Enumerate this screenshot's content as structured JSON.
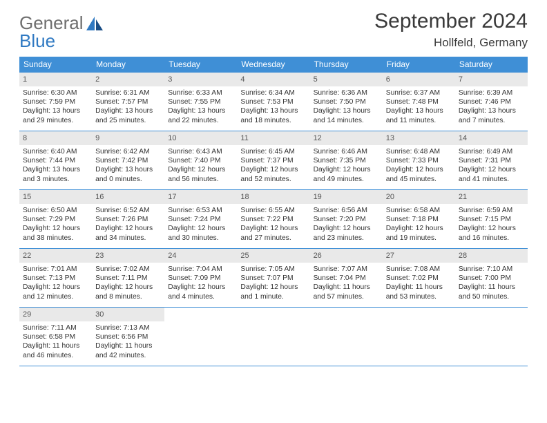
{
  "brand": {
    "word1": "General",
    "word2": "Blue"
  },
  "title": "September 2024",
  "location": "Hollfeld, Germany",
  "colors": {
    "header_bar": "#3f8fd6",
    "row_divider": "#3f8fd6",
    "daynum_bg": "#e9e9e9",
    "text": "#333333",
    "logo_gray": "#6e6e6e",
    "logo_blue": "#2f79c2"
  },
  "dow": [
    "Sunday",
    "Monday",
    "Tuesday",
    "Wednesday",
    "Thursday",
    "Friday",
    "Saturday"
  ],
  "days": [
    {
      "n": "1",
      "sr": "Sunrise: 6:30 AM",
      "ss": "Sunset: 7:59 PM",
      "dl": "Daylight: 13 hours and 29 minutes."
    },
    {
      "n": "2",
      "sr": "Sunrise: 6:31 AM",
      "ss": "Sunset: 7:57 PM",
      "dl": "Daylight: 13 hours and 25 minutes."
    },
    {
      "n": "3",
      "sr": "Sunrise: 6:33 AM",
      "ss": "Sunset: 7:55 PM",
      "dl": "Daylight: 13 hours and 22 minutes."
    },
    {
      "n": "4",
      "sr": "Sunrise: 6:34 AM",
      "ss": "Sunset: 7:53 PM",
      "dl": "Daylight: 13 hours and 18 minutes."
    },
    {
      "n": "5",
      "sr": "Sunrise: 6:36 AM",
      "ss": "Sunset: 7:50 PM",
      "dl": "Daylight: 13 hours and 14 minutes."
    },
    {
      "n": "6",
      "sr": "Sunrise: 6:37 AM",
      "ss": "Sunset: 7:48 PM",
      "dl": "Daylight: 13 hours and 11 minutes."
    },
    {
      "n": "7",
      "sr": "Sunrise: 6:39 AM",
      "ss": "Sunset: 7:46 PM",
      "dl": "Daylight: 13 hours and 7 minutes."
    },
    {
      "n": "8",
      "sr": "Sunrise: 6:40 AM",
      "ss": "Sunset: 7:44 PM",
      "dl": "Daylight: 13 hours and 3 minutes."
    },
    {
      "n": "9",
      "sr": "Sunrise: 6:42 AM",
      "ss": "Sunset: 7:42 PM",
      "dl": "Daylight: 13 hours and 0 minutes."
    },
    {
      "n": "10",
      "sr": "Sunrise: 6:43 AM",
      "ss": "Sunset: 7:40 PM",
      "dl": "Daylight: 12 hours and 56 minutes."
    },
    {
      "n": "11",
      "sr": "Sunrise: 6:45 AM",
      "ss": "Sunset: 7:37 PM",
      "dl": "Daylight: 12 hours and 52 minutes."
    },
    {
      "n": "12",
      "sr": "Sunrise: 6:46 AM",
      "ss": "Sunset: 7:35 PM",
      "dl": "Daylight: 12 hours and 49 minutes."
    },
    {
      "n": "13",
      "sr": "Sunrise: 6:48 AM",
      "ss": "Sunset: 7:33 PM",
      "dl": "Daylight: 12 hours and 45 minutes."
    },
    {
      "n": "14",
      "sr": "Sunrise: 6:49 AM",
      "ss": "Sunset: 7:31 PM",
      "dl": "Daylight: 12 hours and 41 minutes."
    },
    {
      "n": "15",
      "sr": "Sunrise: 6:50 AM",
      "ss": "Sunset: 7:29 PM",
      "dl": "Daylight: 12 hours and 38 minutes."
    },
    {
      "n": "16",
      "sr": "Sunrise: 6:52 AM",
      "ss": "Sunset: 7:26 PM",
      "dl": "Daylight: 12 hours and 34 minutes."
    },
    {
      "n": "17",
      "sr": "Sunrise: 6:53 AM",
      "ss": "Sunset: 7:24 PM",
      "dl": "Daylight: 12 hours and 30 minutes."
    },
    {
      "n": "18",
      "sr": "Sunrise: 6:55 AM",
      "ss": "Sunset: 7:22 PM",
      "dl": "Daylight: 12 hours and 27 minutes."
    },
    {
      "n": "19",
      "sr": "Sunrise: 6:56 AM",
      "ss": "Sunset: 7:20 PM",
      "dl": "Daylight: 12 hours and 23 minutes."
    },
    {
      "n": "20",
      "sr": "Sunrise: 6:58 AM",
      "ss": "Sunset: 7:18 PM",
      "dl": "Daylight: 12 hours and 19 minutes."
    },
    {
      "n": "21",
      "sr": "Sunrise: 6:59 AM",
      "ss": "Sunset: 7:15 PM",
      "dl": "Daylight: 12 hours and 16 minutes."
    },
    {
      "n": "22",
      "sr": "Sunrise: 7:01 AM",
      "ss": "Sunset: 7:13 PM",
      "dl": "Daylight: 12 hours and 12 minutes."
    },
    {
      "n": "23",
      "sr": "Sunrise: 7:02 AM",
      "ss": "Sunset: 7:11 PM",
      "dl": "Daylight: 12 hours and 8 minutes."
    },
    {
      "n": "24",
      "sr": "Sunrise: 7:04 AM",
      "ss": "Sunset: 7:09 PM",
      "dl": "Daylight: 12 hours and 4 minutes."
    },
    {
      "n": "25",
      "sr": "Sunrise: 7:05 AM",
      "ss": "Sunset: 7:07 PM",
      "dl": "Daylight: 12 hours and 1 minute."
    },
    {
      "n": "26",
      "sr": "Sunrise: 7:07 AM",
      "ss": "Sunset: 7:04 PM",
      "dl": "Daylight: 11 hours and 57 minutes."
    },
    {
      "n": "27",
      "sr": "Sunrise: 7:08 AM",
      "ss": "Sunset: 7:02 PM",
      "dl": "Daylight: 11 hours and 53 minutes."
    },
    {
      "n": "28",
      "sr": "Sunrise: 7:10 AM",
      "ss": "Sunset: 7:00 PM",
      "dl": "Daylight: 11 hours and 50 minutes."
    },
    {
      "n": "29",
      "sr": "Sunrise: 7:11 AM",
      "ss": "Sunset: 6:58 PM",
      "dl": "Daylight: 11 hours and 46 minutes."
    },
    {
      "n": "30",
      "sr": "Sunrise: 7:13 AM",
      "ss": "Sunset: 6:56 PM",
      "dl": "Daylight: 11 hours and 42 minutes."
    }
  ]
}
